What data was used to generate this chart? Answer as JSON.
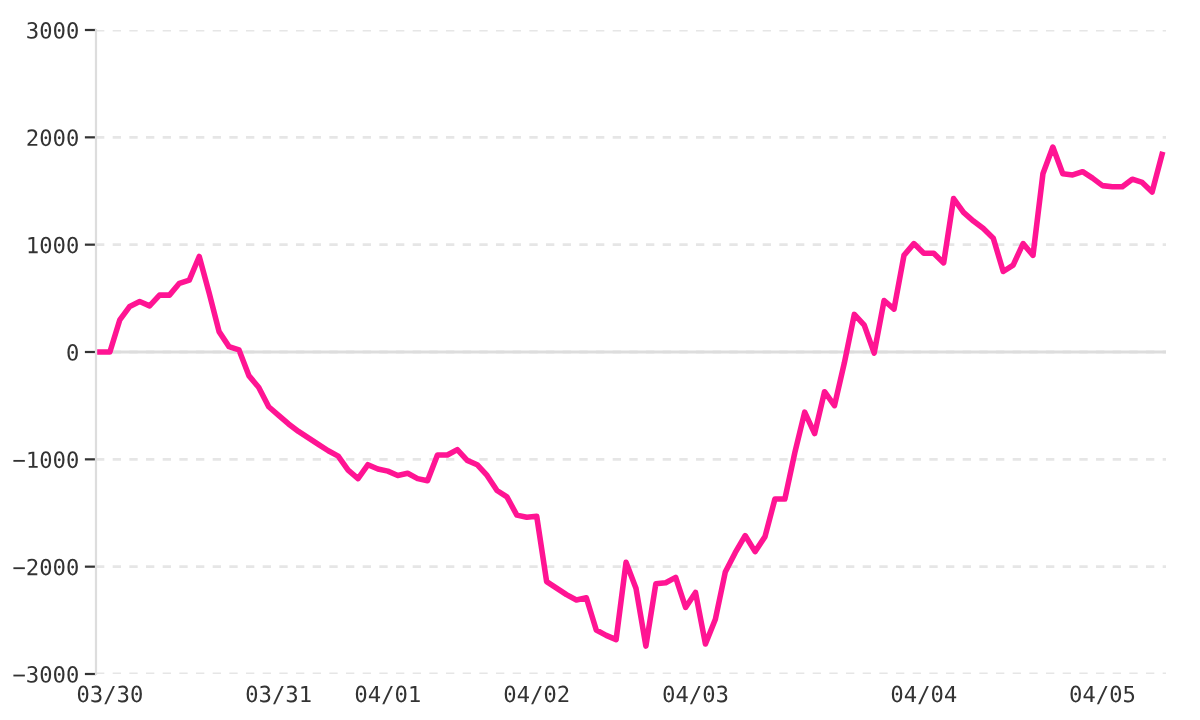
{
  "chart_data": {
    "type": "line",
    "categories": [
      null,
      "03/30",
      null,
      null,
      null,
      null,
      null,
      null,
      null,
      null,
      null,
      null,
      null,
      null,
      null,
      null,
      null,
      null,
      "03/31",
      null,
      null,
      null,
      null,
      null,
      null,
      null,
      null,
      null,
      null,
      "04/01",
      null,
      null,
      null,
      null,
      null,
      null,
      null,
      null,
      null,
      null,
      null,
      null,
      null,
      null,
      "04/02",
      null,
      null,
      null,
      null,
      null,
      null,
      null,
      null,
      null,
      null,
      null,
      null,
      null,
      null,
      null,
      "04/03",
      null,
      null,
      null,
      null,
      null,
      null,
      null,
      null,
      null,
      null,
      null,
      null,
      null,
      null,
      null,
      null,
      null,
      null,
      null,
      null,
      null,
      null,
      "04/04",
      null,
      null,
      null,
      null,
      null,
      null,
      null,
      null,
      null,
      null,
      null,
      null,
      null,
      null,
      null,
      null,
      null,
      "04/05",
      null,
      null,
      null,
      null,
      null,
      null
    ],
    "series": [
      {
        "color": "#ff1493",
        "values": [
          0,
          0,
          300,
          425,
          470,
          430,
          530,
          530,
          640,
          670,
          890,
          550,
          190,
          50,
          20,
          -220,
          -330,
          -510,
          -590,
          -670,
          -740,
          -800,
          -860,
          -920,
          -970,
          -1100,
          -1180,
          -1050,
          -1090,
          -1110,
          -1150,
          -1130,
          -1180,
          -1200,
          -960,
          -960,
          -910,
          -1010,
          -1050,
          -1150,
          -1290,
          -1350,
          -1520,
          -1540,
          -1530,
          -2140,
          -2200,
          -2260,
          -2310,
          -2290,
          -2590,
          -2640,
          -2680,
          -1960,
          -2200,
          -2740,
          -2160,
          -2150,
          -2100,
          -2380,
          -2240,
          -2720,
          -2490,
          -2050,
          -1870,
          -1710,
          -1860,
          -1720,
          -1370,
          -1370,
          -940,
          -560,
          -760,
          -370,
          -500,
          -100,
          350,
          250,
          -10,
          480,
          400,
          900,
          1010,
          920,
          920,
          830,
          1430,
          1300,
          1220,
          1150,
          1060,
          750,
          810,
          1010,
          900,
          1660,
          1910,
          1660,
          1650,
          1680,
          1620,
          1550,
          1540,
          1540,
          1610,
          1580,
          1490,
          1840
        ]
      }
    ],
    "ylim": [
      -3000,
      3000
    ],
    "yticks": [
      -3000,
      -2000,
      -1000,
      0,
      1000,
      2000,
      3000
    ],
    "grid": "y",
    "marker": "none",
    "line_style": "solid",
    "ref_lines": [
      {
        "axis": "y",
        "value": 0,
        "color": "#dddddd",
        "line_style": "solid"
      }
    ]
  }
}
